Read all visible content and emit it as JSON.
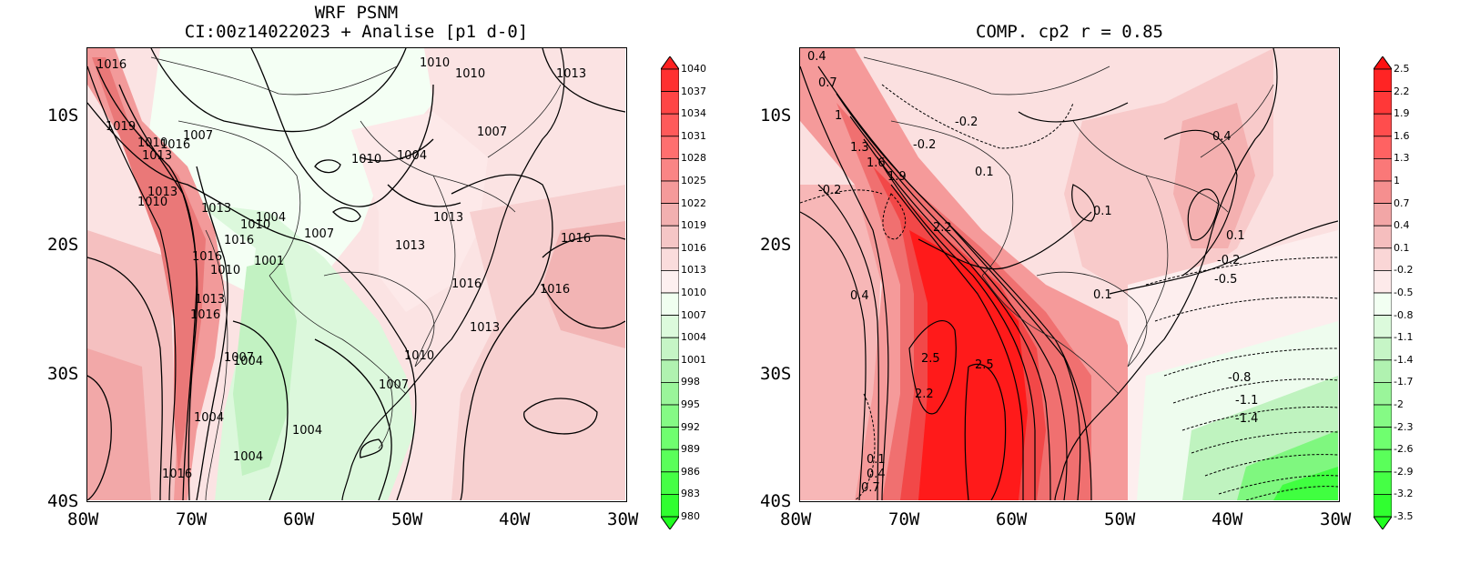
{
  "left_panel": {
    "title_line1": "WRF PSNM",
    "title_line2": "CI:00z14022023 + Analise  [p1 d-0]",
    "y_ticks": [
      "10S",
      "20S",
      "30S",
      "40S"
    ],
    "x_ticks": [
      "80W",
      "70W",
      "60W",
      "50W",
      "40W",
      "30W"
    ],
    "colorbar": {
      "labels": [
        "1040",
        "1037",
        "1034",
        "1031",
        "1028",
        "1025",
        "1022",
        "1019",
        "1016",
        "1013",
        "1010",
        "1007",
        "1004",
        "1001",
        "998",
        "995",
        "992",
        "989",
        "986",
        "983",
        "980"
      ],
      "colors": [
        "#ff2020",
        "#ff3030",
        "#ff4545",
        "#ff5a5a",
        "#ff6f6f",
        "#fa8585",
        "#f59a9a",
        "#f2b0b0",
        "#f5c6c6",
        "#fadcdc",
        "#fdf0f0",
        "#f0fff0",
        "#dcfadc",
        "#c6f5c6",
        "#b0f2b0",
        "#9af59a",
        "#85fa85",
        "#6fff6f",
        "#5aff5a",
        "#45ff45",
        "#30ff30",
        "#20ff20"
      ]
    },
    "contour_labels": [
      "1016",
      "1019",
      "1013",
      "1010",
      "1007",
      "1004",
      "1001",
      "1016",
      "1013",
      "1010",
      "1007",
      "1004",
      "1013",
      "1016",
      "1010",
      "1007",
      "1013",
      "1016",
      "1013",
      "1010",
      "1007",
      "1004",
      "1010",
      "1016",
      "1013",
      "1010",
      "1010",
      "1016",
      "1013",
      "1016",
      "1016",
      "1013",
      "1004",
      "1004",
      "1016",
      "1007",
      "1010",
      "1004"
    ]
  },
  "right_panel": {
    "title": "COMP. cp2  r =  0.85",
    "y_ticks": [
      "10S",
      "20S",
      "30S",
      "40S"
    ],
    "x_ticks": [
      "80W",
      "70W",
      "60W",
      "50W",
      "40W",
      "30W"
    ],
    "colorbar": {
      "labels": [
        "2.5",
        "2.2",
        "1.9",
        "1.6",
        "1.3",
        "1",
        "0.7",
        "0.4",
        "0.1",
        "-0.2",
        "-0.5",
        "-0.8",
        "-1.1",
        "-1.4",
        "-1.7",
        "-2",
        "-2.3",
        "-2.6",
        "-2.9",
        "-3.2",
        "-3.5"
      ],
      "colors": [
        "#ff1010",
        "#ff2424",
        "#ff3838",
        "#ff4d4d",
        "#ff6262",
        "#fa7878",
        "#f58f8f",
        "#f2a6a6",
        "#f5bebe",
        "#fad6d6",
        "#fdeaea",
        "#f2fff2",
        "#dcfadc",
        "#c6f5c6",
        "#b0f2b0",
        "#9af59a",
        "#85fa85",
        "#6fff6f",
        "#5aff5a",
        "#45ff45",
        "#30ff30",
        "#20ff20"
      ]
    },
    "contour_labels": [
      "0.4",
      "0.7",
      "1",
      "1.3",
      "1.6",
      "1.9",
      "-0.2",
      "-0.2",
      "-0.2",
      "0.1",
      "2.2",
      "0.4",
      "2.5",
      "2.5",
      "2.2",
      "0.1",
      "0.4",
      "0.7",
      "0.1",
      "0.4",
      "0.1",
      "-0.2",
      "-0.5",
      "0.1",
      "-0.8",
      "-1.1",
      "-1.4"
    ]
  }
}
